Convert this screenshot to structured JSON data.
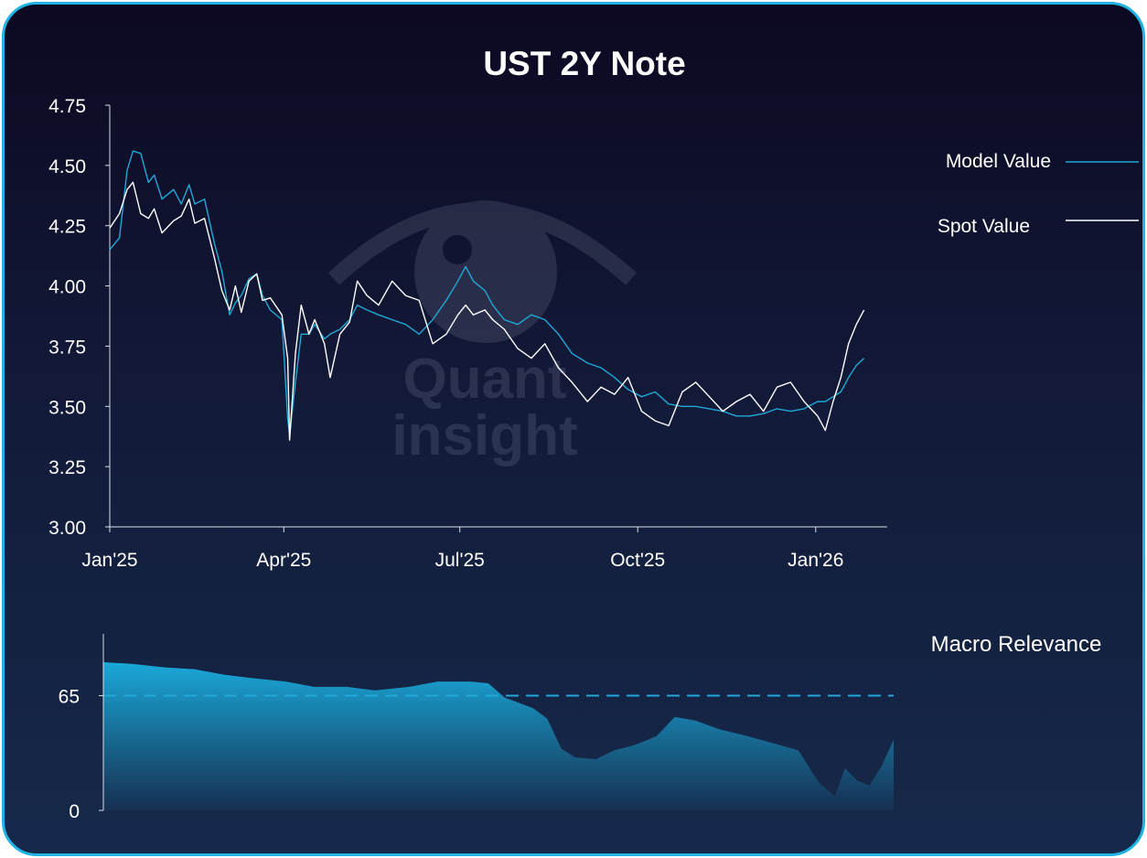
{
  "chart_data": [
    {
      "type": "line",
      "title": "UST 2Y Note",
      "xlabel": "",
      "ylabel": "",
      "ylim": [
        3.0,
        4.75
      ],
      "y_ticks": [
        "3.00",
        "3.25",
        "3.50",
        "3.75",
        "4.00",
        "4.25",
        "4.50",
        "4.75"
      ],
      "x_ticks": [
        "Jan'25",
        "Apr'25",
        "Jul'25",
        "Oct'25",
        "Jan'26"
      ],
      "x_tick_dates": [
        "2025-01-01",
        "2025-04-01",
        "2025-07-01",
        "2025-10-01",
        "2026-01-01"
      ],
      "xlim": [
        "2025-01-01",
        "2026-01-26"
      ],
      "legend_position": "right",
      "series": [
        {
          "name": "Model Value",
          "color": "#1fa8d8",
          "points": [
            [
              "2025-01-01",
              4.15
            ],
            [
              "2025-01-06",
              4.2
            ],
            [
              "2025-01-10",
              4.48
            ],
            [
              "2025-01-13",
              4.56
            ],
            [
              "2025-01-17",
              4.55
            ],
            [
              "2025-01-21",
              4.43
            ],
            [
              "2025-01-24",
              4.46
            ],
            [
              "2025-01-28",
              4.36
            ],
            [
              "2025-02-03",
              4.4
            ],
            [
              "2025-02-07",
              4.34
            ],
            [
              "2025-02-11",
              4.42
            ],
            [
              "2025-02-14",
              4.34
            ],
            [
              "2025-02-19",
              4.36
            ],
            [
              "2025-02-24",
              4.18
            ],
            [
              "2025-02-28",
              4.06
            ],
            [
              "2025-03-04",
              3.88
            ],
            [
              "2025-03-07",
              3.93
            ],
            [
              "2025-03-10",
              3.96
            ],
            [
              "2025-03-14",
              4.03
            ],
            [
              "2025-03-18",
              4.05
            ],
            [
              "2025-03-21",
              3.96
            ],
            [
              "2025-03-25",
              3.9
            ],
            [
              "2025-03-31",
              3.86
            ],
            [
              "2025-04-03",
              3.45
            ],
            [
              "2025-04-04",
              3.38
            ],
            [
              "2025-04-07",
              3.6
            ],
            [
              "2025-04-10",
              3.8
            ],
            [
              "2025-04-14",
              3.8
            ],
            [
              "2025-04-17",
              3.84
            ],
            [
              "2025-04-22",
              3.78
            ],
            [
              "2025-04-25",
              3.8
            ],
            [
              "2025-04-30",
              3.82
            ],
            [
              "2025-05-05",
              3.86
            ],
            [
              "2025-05-09",
              3.92
            ],
            [
              "2025-05-14",
              3.9
            ],
            [
              "2025-05-20",
              3.88
            ],
            [
              "2025-05-27",
              3.86
            ],
            [
              "2025-06-03",
              3.84
            ],
            [
              "2025-06-10",
              3.8
            ],
            [
              "2025-06-17",
              3.86
            ],
            [
              "2025-06-24",
              3.94
            ],
            [
              "2025-06-30",
              4.02
            ],
            [
              "2025-07-04",
              4.08
            ],
            [
              "2025-07-08",
              4.02
            ],
            [
              "2025-07-14",
              3.98
            ],
            [
              "2025-07-18",
              3.92
            ],
            [
              "2025-07-24",
              3.86
            ],
            [
              "2025-07-31",
              3.84
            ],
            [
              "2025-08-07",
              3.88
            ],
            [
              "2025-08-14",
              3.86
            ],
            [
              "2025-08-21",
              3.8
            ],
            [
              "2025-08-28",
              3.72
            ],
            [
              "2025-09-05",
              3.68
            ],
            [
              "2025-09-12",
              3.66
            ],
            [
              "2025-09-19",
              3.62
            ],
            [
              "2025-09-26",
              3.57
            ],
            [
              "2025-10-03",
              3.54
            ],
            [
              "2025-10-10",
              3.56
            ],
            [
              "2025-10-17",
              3.51
            ],
            [
              "2025-10-24",
              3.5
            ],
            [
              "2025-10-31",
              3.5
            ],
            [
              "2025-11-07",
              3.49
            ],
            [
              "2025-11-14",
              3.48
            ],
            [
              "2025-11-21",
              3.46
            ],
            [
              "2025-11-28",
              3.46
            ],
            [
              "2025-12-05",
              3.47
            ],
            [
              "2025-12-12",
              3.49
            ],
            [
              "2025-12-19",
              3.48
            ],
            [
              "2025-12-26",
              3.49
            ],
            [
              "2026-01-02",
              3.52
            ],
            [
              "2026-01-06",
              3.52
            ],
            [
              "2026-01-10",
              3.54
            ],
            [
              "2026-01-14",
              3.56
            ],
            [
              "2026-01-18",
              3.62
            ],
            [
              "2026-01-22",
              3.67
            ],
            [
              "2026-01-26",
              3.7
            ]
          ]
        },
        {
          "name": "Spot Value",
          "color": "#ffffff",
          "points": [
            [
              "2025-01-01",
              4.24
            ],
            [
              "2025-01-06",
              4.3
            ],
            [
              "2025-01-10",
              4.4
            ],
            [
              "2025-01-13",
              4.43
            ],
            [
              "2025-01-17",
              4.3
            ],
            [
              "2025-01-21",
              4.28
            ],
            [
              "2025-01-24",
              4.32
            ],
            [
              "2025-01-28",
              4.22
            ],
            [
              "2025-02-03",
              4.27
            ],
            [
              "2025-02-07",
              4.29
            ],
            [
              "2025-02-11",
              4.36
            ],
            [
              "2025-02-14",
              4.26
            ],
            [
              "2025-02-19",
              4.28
            ],
            [
              "2025-02-24",
              4.12
            ],
            [
              "2025-02-28",
              3.98
            ],
            [
              "2025-03-04",
              3.9
            ],
            [
              "2025-03-07",
              4.0
            ],
            [
              "2025-03-10",
              3.89
            ],
            [
              "2025-03-14",
              4.02
            ],
            [
              "2025-03-18",
              4.05
            ],
            [
              "2025-03-21",
              3.94
            ],
            [
              "2025-03-25",
              3.95
            ],
            [
              "2025-03-31",
              3.88
            ],
            [
              "2025-04-03",
              3.7
            ],
            [
              "2025-04-04",
              3.36
            ],
            [
              "2025-04-07",
              3.72
            ],
            [
              "2025-04-10",
              3.92
            ],
            [
              "2025-04-14",
              3.8
            ],
            [
              "2025-04-17",
              3.86
            ],
            [
              "2025-04-22",
              3.76
            ],
            [
              "2025-04-25",
              3.62
            ],
            [
              "2025-04-30",
              3.8
            ],
            [
              "2025-05-05",
              3.85
            ],
            [
              "2025-05-09",
              4.02
            ],
            [
              "2025-05-14",
              3.96
            ],
            [
              "2025-05-20",
              3.92
            ],
            [
              "2025-05-27",
              4.02
            ],
            [
              "2025-06-03",
              3.96
            ],
            [
              "2025-06-10",
              3.94
            ],
            [
              "2025-06-17",
              3.76
            ],
            [
              "2025-06-24",
              3.8
            ],
            [
              "2025-06-30",
              3.88
            ],
            [
              "2025-07-04",
              3.92
            ],
            [
              "2025-07-08",
              3.88
            ],
            [
              "2025-07-14",
              3.9
            ],
            [
              "2025-07-18",
              3.86
            ],
            [
              "2025-07-24",
              3.82
            ],
            [
              "2025-07-31",
              3.74
            ],
            [
              "2025-08-07",
              3.7
            ],
            [
              "2025-08-14",
              3.76
            ],
            [
              "2025-08-21",
              3.66
            ],
            [
              "2025-08-28",
              3.6
            ],
            [
              "2025-09-05",
              3.52
            ],
            [
              "2025-09-12",
              3.58
            ],
            [
              "2025-09-19",
              3.55
            ],
            [
              "2025-09-26",
              3.62
            ],
            [
              "2025-10-03",
              3.48
            ],
            [
              "2025-10-10",
              3.44
            ],
            [
              "2025-10-17",
              3.42
            ],
            [
              "2025-10-24",
              3.56
            ],
            [
              "2025-10-31",
              3.6
            ],
            [
              "2025-11-07",
              3.54
            ],
            [
              "2025-11-14",
              3.48
            ],
            [
              "2025-11-21",
              3.52
            ],
            [
              "2025-11-28",
              3.55
            ],
            [
              "2025-12-05",
              3.48
            ],
            [
              "2025-12-12",
              3.58
            ],
            [
              "2025-12-19",
              3.6
            ],
            [
              "2025-12-26",
              3.52
            ],
            [
              "2026-01-02",
              3.46
            ],
            [
              "2026-01-06",
              3.4
            ],
            [
              "2026-01-10",
              3.52
            ],
            [
              "2026-01-14",
              3.62
            ],
            [
              "2026-01-18",
              3.76
            ],
            [
              "2026-01-22",
              3.84
            ],
            [
              "2026-01-26",
              3.9
            ]
          ]
        }
      ]
    },
    {
      "type": "area",
      "title": "Macro Relevance",
      "ylim": [
        0,
        100
      ],
      "y_ticks": [
        "0",
        "65"
      ],
      "threshold": 65,
      "xlim": [
        "2025-01-01",
        "2026-01-26"
      ],
      "color": "#1fa8d8",
      "points": [
        [
          "2025-01-01",
          84
        ],
        [
          "2025-01-15",
          83
        ],
        [
          "2025-02-01",
          81
        ],
        [
          "2025-02-15",
          80
        ],
        [
          "2025-03-01",
          77
        ],
        [
          "2025-03-15",
          75
        ],
        [
          "2025-04-01",
          73
        ],
        [
          "2025-04-15",
          70
        ],
        [
          "2025-05-01",
          70
        ],
        [
          "2025-05-15",
          68
        ],
        [
          "2025-06-01",
          70
        ],
        [
          "2025-06-15",
          73
        ],
        [
          "2025-07-01",
          73
        ],
        [
          "2025-07-10",
          72
        ],
        [
          "2025-07-18",
          64
        ],
        [
          "2025-08-01",
          58
        ],
        [
          "2025-08-08",
          52
        ],
        [
          "2025-08-15",
          35
        ],
        [
          "2025-08-22",
          30
        ],
        [
          "2025-09-01",
          29
        ],
        [
          "2025-09-10",
          34
        ],
        [
          "2025-09-20",
          37
        ],
        [
          "2025-10-01",
          42
        ],
        [
          "2025-10-10",
          53
        ],
        [
          "2025-10-20",
          51
        ],
        [
          "2025-11-01",
          46
        ],
        [
          "2025-11-15",
          42
        ],
        [
          "2025-12-01",
          37
        ],
        [
          "2025-12-10",
          34
        ],
        [
          "2025-12-20",
          16
        ],
        [
          "2025-12-28",
          8
        ],
        [
          "2026-01-02",
          24
        ],
        [
          "2026-01-08",
          17
        ],
        [
          "2026-01-14",
          14
        ],
        [
          "2026-01-20",
          25
        ],
        [
          "2026-01-26",
          40
        ]
      ]
    }
  ]
}
